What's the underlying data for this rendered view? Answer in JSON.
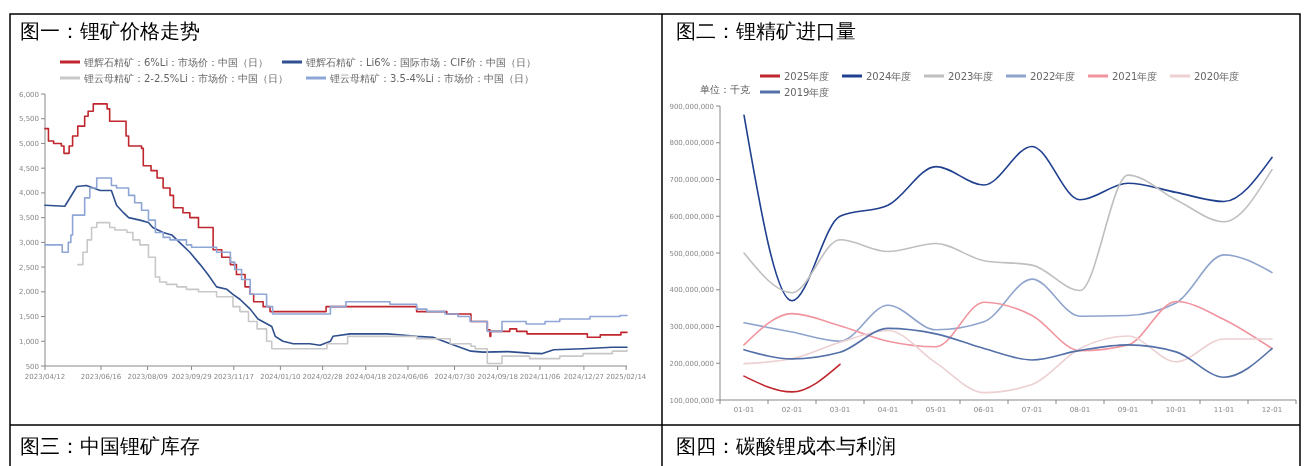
{
  "chart_data": [
    {
      "type": "step",
      "title": "图一：锂矿价格走势",
      "legend": "top",
      "xlim": [
        "2023-04-12",
        "2025-02-15"
      ],
      "xticks": [
        {
          "value": "2023-04-12",
          "label": "2023/04/12"
        },
        {
          "value": "2023-06-16",
          "label": "2023/06/16"
        },
        {
          "value": "2023-08-09",
          "label": "2023/08/09"
        },
        {
          "value": "2023-09-29",
          "label": "2023/09/29"
        },
        {
          "value": "2023-11-17",
          "label": "2023/11/17"
        },
        {
          "value": "2024-01-10",
          "label": "2024/01/10"
        },
        {
          "value": "2024-02-28",
          "label": "2024/02/28"
        },
        {
          "value": "2024-04-18",
          "label": "2024/04/18"
        },
        {
          "value": "2024-06-06",
          "label": "2024/06/06"
        },
        {
          "value": "2024-07-30",
          "label": "2024/07/30"
        },
        {
          "value": "2024-09-18",
          "label": "2024/09/18"
        },
        {
          "value": "2024-11-06",
          "label": "2024/11/06"
        },
        {
          "value": "2024-12-27",
          "label": "2024/12/27"
        },
        {
          "value": "2025-02-14",
          "label": "2025/02/14"
        }
      ],
      "ylim": [
        500,
        6000
      ],
      "yticks": [
        {
          "value": 500,
          "label": "500"
        },
        {
          "value": 1000,
          "label": "1,000"
        },
        {
          "value": 1500,
          "label": "1,500"
        },
        {
          "value": 2000,
          "label": "2,000"
        },
        {
          "value": 2500,
          "label": "2,500"
        },
        {
          "value": 3000,
          "label": "3,000"
        },
        {
          "value": 3500,
          "label": "3,500"
        },
        {
          "value": 4000,
          "label": "4,000"
        },
        {
          "value": 4500,
          "label": "4,500"
        },
        {
          "value": 5000,
          "label": "5,000"
        },
        {
          "value": 5500,
          "label": "5,500"
        },
        {
          "value": 6000,
          "label": "6,000"
        }
      ],
      "series": [
        {
          "name": "锂辉石精矿：6%Li：市场价：中国（日）",
          "color": "#c0262d",
          "x": [
            "2023-04-12",
            "2023-04-16",
            "2023-04-22",
            "2023-05-01",
            "2023-05-04",
            "2023-05-10",
            "2023-05-14",
            "2023-05-20",
            "2023-05-28",
            "2023-06-01",
            "2023-06-07",
            "2023-06-23",
            "2023-06-26",
            "2023-07-15",
            "2023-07-18",
            "2023-08-02",
            "2023-08-04",
            "2023-08-13",
            "2023-08-20",
            "2023-08-27",
            "2023-09-04",
            "2023-09-08",
            "2023-09-19",
            "2023-09-27",
            "2023-10-07",
            "2023-10-24",
            "2023-11-03",
            "2023-11-13",
            "2023-11-20",
            "2023-11-30",
            "2023-12-06",
            "2023-12-10",
            "2023-12-21",
            "2023-12-29",
            "2024-03-03",
            "2024-06-16",
            "2024-07-21",
            "2024-08-18",
            "2024-09-06",
            "2024-09-09",
            "2024-09-10",
            "2024-10-02",
            "2024-10-10",
            "2024-10-22",
            "2024-12-31",
            "2025-01-15",
            "2025-02-08",
            "2025-02-15"
          ],
          "values": [
            5300,
            5050,
            5000,
            4950,
            4800,
            4950,
            5150,
            5350,
            5550,
            5650,
            5800,
            5700,
            5450,
            5150,
            4950,
            4900,
            4550,
            4450,
            4300,
            4100,
            3950,
            3700,
            3600,
            3500,
            3300,
            2850,
            2700,
            2550,
            2350,
            2100,
            1950,
            1800,
            1700,
            1600,
            1700,
            1600,
            1550,
            1400,
            1230,
            1100,
            1200,
            1250,
            1200,
            1150,
            1080,
            1130,
            1180,
            1180
          ]
        },
        {
          "name": "锂辉石精矿：Li6%：国际市场：CIF价：中国（日）",
          "color": "#2f4f8f",
          "type": "line",
          "x": [
            "2023-04-12",
            "2023-05-05",
            "2023-05-19",
            "2023-05-30",
            "2023-06-07",
            "2023-06-15",
            "2023-06-28",
            "2023-07-04",
            "2023-07-12",
            "2023-07-18",
            "2023-07-31",
            "2023-08-10",
            "2023-08-15",
            "2023-08-27",
            "2023-09-06",
            "2023-09-15",
            "2023-09-27",
            "2023-10-09",
            "2023-10-18",
            "2023-10-28",
            "2023-11-09",
            "2023-11-16",
            "2023-11-24",
            "2023-12-06",
            "2023-12-15",
            "2023-12-31",
            "2024-01-04",
            "2024-01-13",
            "2024-01-25",
            "2024-02-13",
            "2024-02-25",
            "2024-03-08",
            "2024-03-11",
            "2024-03-31",
            "2024-05-13",
            "2024-06-16",
            "2024-07-05",
            "2024-07-25",
            "2024-08-18",
            "2024-09-01",
            "2024-09-30",
            "2024-10-24",
            "2024-11-08",
            "2024-11-22",
            "2024-12-26",
            "2025-01-29",
            "2025-02-15"
          ],
          "values": [
            3750,
            3730,
            4130,
            4150,
            4100,
            4050,
            4050,
            3750,
            3600,
            3500,
            3450,
            3400,
            3300,
            3200,
            3150,
            3000,
            2800,
            2550,
            2350,
            2100,
            2050,
            1950,
            1850,
            1650,
            1450,
            1300,
            1100,
            1000,
            950,
            950,
            920,
            1000,
            1100,
            1150,
            1150,
            1100,
            1080,
            950,
            800,
            780,
            790,
            760,
            750,
            830,
            850,
            880,
            880
          ]
        },
        {
          "name": "锂云母精矿：2-2.5%Li：市场价：中国（日）",
          "color": "#c8c8c8",
          "x": [
            "2023-05-20",
            "2023-05-26",
            "2023-05-31",
            "2023-06-05",
            "2023-06-11",
            "2023-06-26",
            "2023-07-02",
            "2023-07-16",
            "2023-07-23",
            "2023-07-31",
            "2023-08-10",
            "2023-08-18",
            "2023-08-23",
            "2023-08-31",
            "2023-09-12",
            "2023-09-23",
            "2023-10-07",
            "2023-10-28",
            "2023-11-16",
            "2023-11-24",
            "2023-12-04",
            "2023-12-14",
            "2023-12-25",
            "2023-12-31",
            "2024-03-04",
            "2024-03-28",
            "2024-06-16",
            "2024-07-25",
            "2024-08-18",
            "2024-08-23",
            "2024-09-06",
            "2024-09-23",
            "2024-10-25",
            "2024-11-29",
            "2024-12-26",
            "2025-01-29",
            "2025-02-15"
          ],
          "values": [
            2550,
            2800,
            3050,
            3300,
            3400,
            3300,
            3250,
            3200,
            3050,
            2950,
            2700,
            2300,
            2200,
            2150,
            2100,
            2050,
            2000,
            1900,
            1700,
            1600,
            1400,
            1250,
            1000,
            850,
            950,
            1100,
            1050,
            950,
            900,
            850,
            550,
            700,
            650,
            700,
            750,
            800,
            820
          ]
        },
        {
          "name": "锂云母精矿：3.5-4%Li：市场价：中国（日）",
          "color": "#8ea6d6",
          "x": [
            "2023-04-12",
            "2023-05-02",
            "2023-05-09",
            "2023-05-12",
            "2023-05-14",
            "2023-05-28",
            "2023-06-03",
            "2023-06-11",
            "2023-06-28",
            "2023-07-04",
            "2023-07-18",
            "2023-07-25",
            "2023-08-02",
            "2023-08-10",
            "2023-08-18",
            "2023-08-27",
            "2023-09-04",
            "2023-09-23",
            "2023-09-29",
            "2023-10-28",
            "2023-11-13",
            "2023-11-18",
            "2023-11-26",
            "2023-12-06",
            "2023-12-25",
            "2024-01-01",
            "2024-03-08",
            "2024-03-26",
            "2024-05-16",
            "2024-06-16",
            "2024-06-28",
            "2024-07-19",
            "2024-08-03",
            "2024-08-17",
            "2024-09-06",
            "2024-09-23",
            "2024-10-21",
            "2024-11-12",
            "2024-11-29",
            "2025-01-03",
            "2025-02-07",
            "2025-02-15"
          ],
          "values": [
            2950,
            2800,
            3000,
            3150,
            3550,
            3900,
            4100,
            4300,
            4150,
            4100,
            3950,
            3800,
            3650,
            3450,
            3200,
            3100,
            3050,
            2950,
            2900,
            2800,
            2600,
            2450,
            2250,
            1950,
            1700,
            1550,
            1700,
            1800,
            1750,
            1650,
            1600,
            1550,
            1500,
            1400,
            1200,
            1400,
            1350,
            1400,
            1450,
            1500,
            1520,
            1520
          ]
        }
      ]
    },
    {
      "type": "line",
      "title": "图二：锂精矿进口量",
      "legend": "top",
      "annotations": [
        "单位：千克"
      ],
      "categories": [
        "01-01",
        "02-01",
        "03-01",
        "04-01",
        "05-01",
        "06-01",
        "07-01",
        "08-01",
        "09-01",
        "10-01",
        "11-01",
        "12-01"
      ],
      "ylim": [
        100000000,
        900000000
      ],
      "yticks": [
        {
          "value": 100000000,
          "label": "100,000,000"
        },
        {
          "value": 200000000,
          "label": "200,000,000"
        },
        {
          "value": 300000000,
          "label": "300,000,000"
        },
        {
          "value": 400000000,
          "label": "400,000,000"
        },
        {
          "value": 500000000,
          "label": "500,000,000"
        },
        {
          "value": 600000000,
          "label": "600,000,000"
        },
        {
          "value": 700000000,
          "label": "700,000,000"
        },
        {
          "value": 800000000,
          "label": "800,000,000"
        },
        {
          "value": 900000000,
          "label": "900,000,000"
        }
      ],
      "series": [
        {
          "name": "2025年度",
          "color": "#c0262d",
          "values": [
            165000000,
            122000000,
            197000000,
            null,
            null,
            null,
            null,
            null,
            null,
            null,
            null,
            null
          ]
        },
        {
          "name": "2024年度",
          "color": "#1f3f8f",
          "values": [
            875000000,
            370000000,
            600000000,
            630000000,
            735000000,
            685000000,
            790000000,
            645000000,
            690000000,
            665000000,
            640000000,
            760000000
          ]
        },
        {
          "name": "2023年度",
          "color": "#bfbfbf",
          "values": [
            500000000,
            392000000,
            536000000,
            504000000,
            526000000,
            479000000,
            467000000,
            398000000,
            712000000,
            645000000,
            585000000,
            727000000
          ]
        },
        {
          "name": "2022年度",
          "color": "#8fa4cc",
          "values": [
            310000000,
            285000000,
            260000000,
            358000000,
            291000000,
            313000000,
            429000000,
            328000000,
            330000000,
            364000000,
            495000000,
            447000000
          ]
        },
        {
          "name": "2021年度",
          "color": "#f0949e",
          "values": [
            250000000,
            335000000,
            302000000,
            260000000,
            245000000,
            366000000,
            330000000,
            234000000,
            250000000,
            368000000,
            319000000,
            240000000
          ]
        },
        {
          "name": "2020年度",
          "color": "#ecd0d2",
          "values": [
            199000000,
            212000000,
            257000000,
            289000000,
            201000000,
            120000000,
            142000000,
            240000000,
            274000000,
            204000000,
            266000000,
            266000000
          ]
        },
        {
          "name": "2019年度",
          "color": "#5470a8",
          "values": [
            237000000,
            212000000,
            230000000,
            295000000,
            280000000,
            240000000,
            209000000,
            235000000,
            250000000,
            231000000,
            162000000,
            240000000
          ]
        }
      ]
    },
    {
      "type": "other",
      "title": "图三：中国锂矿库存"
    },
    {
      "type": "other",
      "title": "图四：碳酸锂成本与利润"
    }
  ]
}
